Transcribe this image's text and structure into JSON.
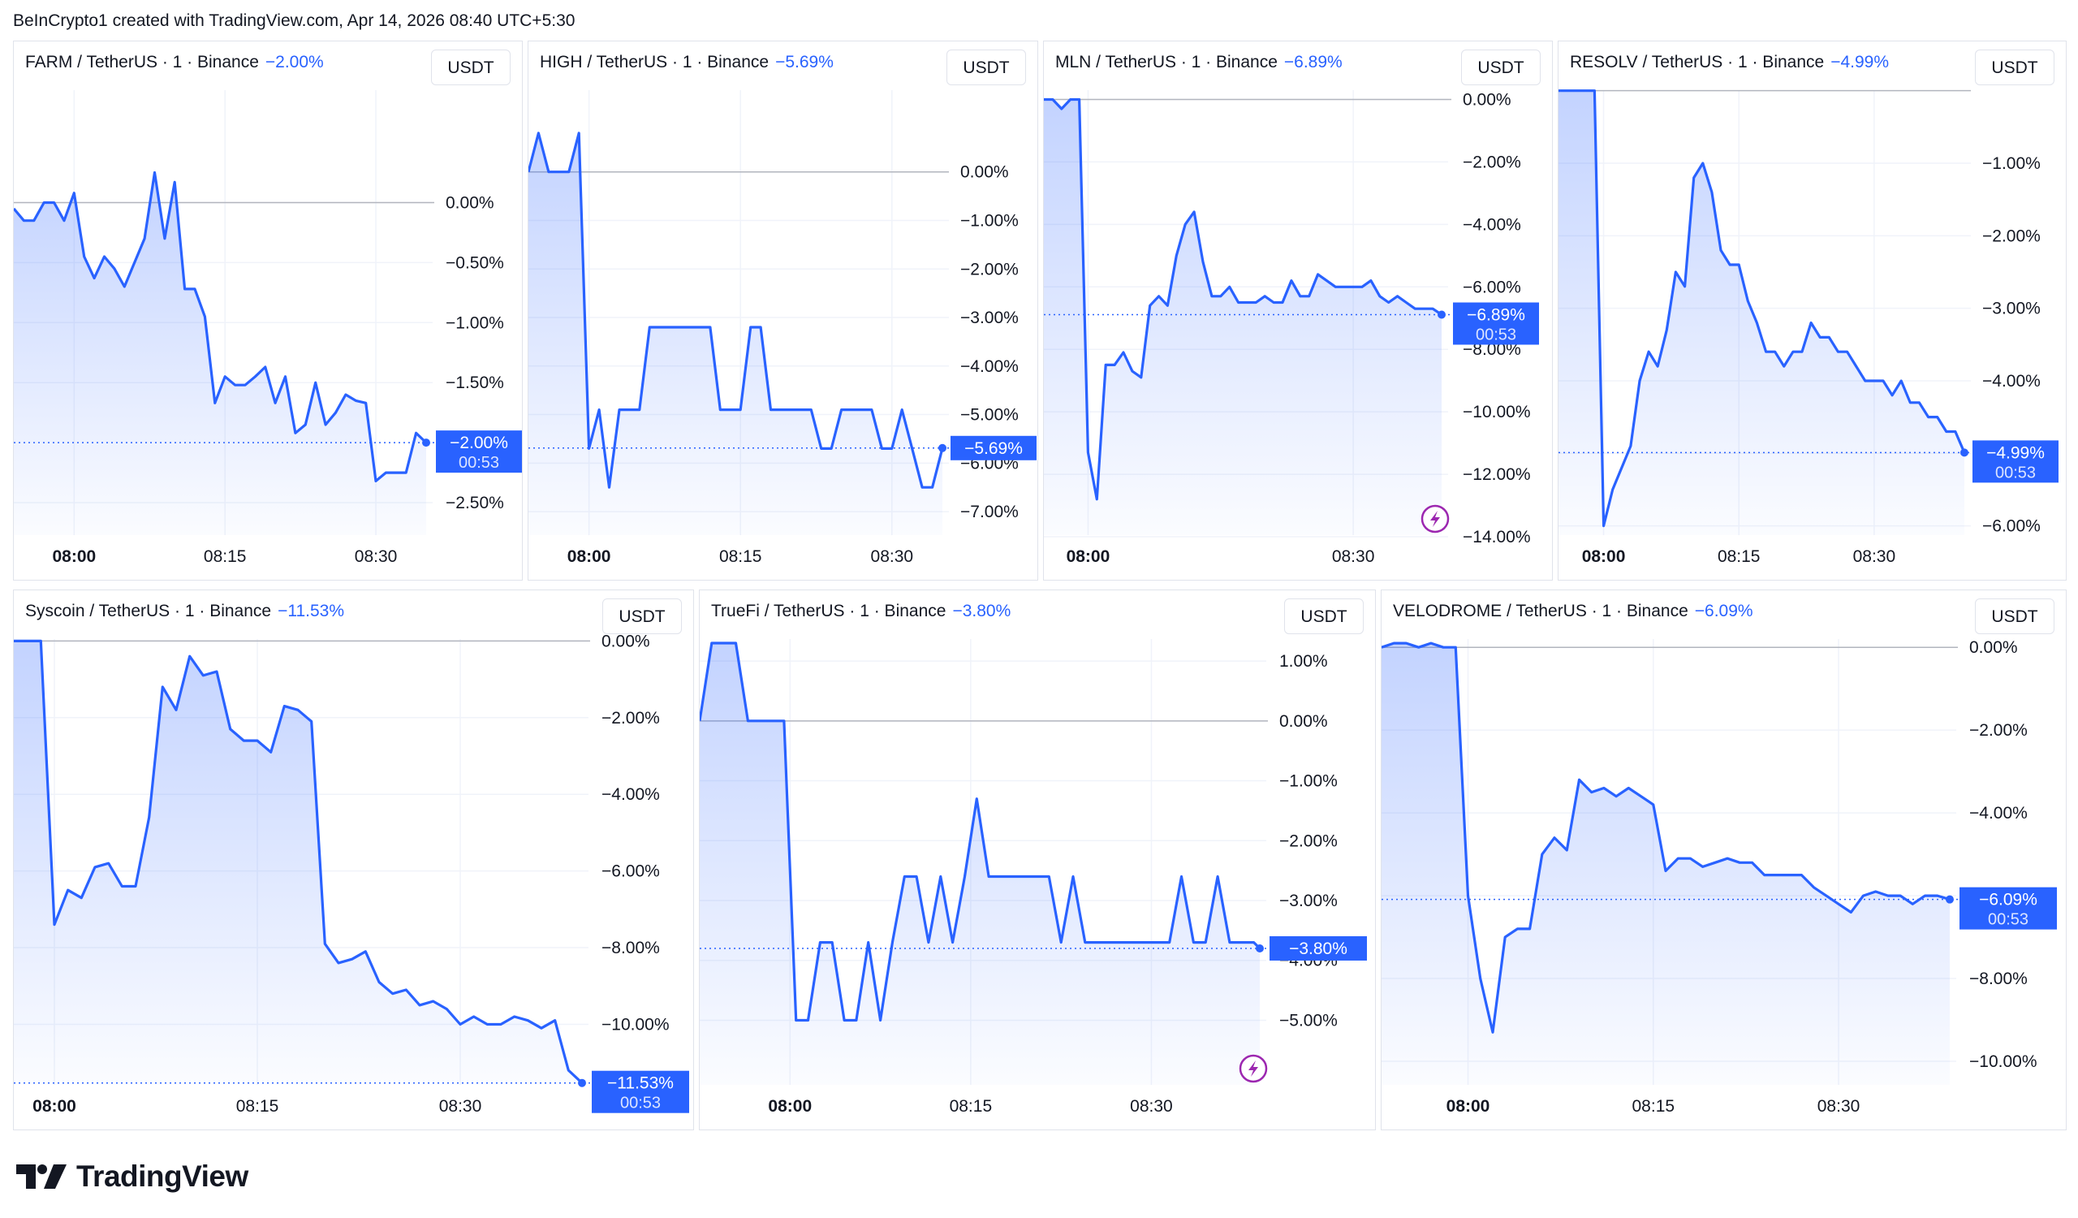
{
  "header": "BeInCrypto1 created with TradingView.com, Apr 14, 2026 08:40 UTC+5:30",
  "footer": {
    "brand": "TradingView",
    "logo_icon": "tradingview-logo-icon"
  },
  "colors": {
    "line": "#2962ff",
    "baseline": "#b2b5be",
    "grid": "#f0f3fa",
    "label_bg": "#2962ff",
    "lightning": "#9c27b0"
  },
  "chart_data": [
    {
      "type": "area",
      "title": "FARM / TetherUS · 1 · Binance",
      "change": "−2.00%",
      "currency": "USDT",
      "x_ticks": [
        "08:00",
        "08:15",
        "08:30"
      ],
      "x_tick_positions": [
        0,
        15,
        30
      ],
      "x_range": [
        -6,
        35
      ],
      "y_ticks": [
        0,
        -0.5,
        -1,
        -1.5,
        -2.5
      ],
      "y_tick_labels": [
        "0.00%",
        "−0.50%",
        "−1.00%",
        "−1.50%",
        "−2.50%"
      ],
      "ylim": [
        -2.75,
        0.7
      ],
      "last_value": -2.0,
      "last_label": "−2.00%",
      "countdown": "00:53",
      "x": [
        -6,
        -5,
        -4,
        -3,
        -2,
        -1,
        0,
        1,
        2,
        3,
        4,
        5,
        6,
        7,
        8,
        9,
        10,
        11,
        12,
        13,
        14,
        15,
        16,
        17,
        18,
        19,
        20,
        21,
        22,
        23,
        24,
        25,
        26,
        27,
        28,
        29,
        30,
        31,
        32,
        33,
        34,
        35
      ],
      "y": [
        -0.05,
        -0.15,
        -0.15,
        0.0,
        0.0,
        -0.15,
        0.08,
        -0.45,
        -0.63,
        -0.45,
        -0.55,
        -0.7,
        -0.5,
        -0.3,
        0.25,
        -0.3,
        0.17,
        -0.72,
        -0.72,
        -0.95,
        -1.67,
        -1.45,
        -1.52,
        -1.52,
        -1.45,
        -1.37,
        -1.67,
        -1.45,
        -1.92,
        -1.85,
        -1.5,
        -1.85,
        -1.75,
        -1.6,
        -1.65,
        -1.67,
        -2.32,
        -2.25,
        -2.25,
        -2.25,
        -1.92,
        -2.0
      ],
      "lightning": false
    },
    {
      "type": "area",
      "title": "HIGH / TetherUS · 1 · Binance",
      "change": "−5.69%",
      "currency": "USDT",
      "x_ticks": [
        "08:00",
        "08:15",
        "08:30"
      ],
      "x_tick_positions": [
        0,
        15,
        30
      ],
      "x_range": [
        -6,
        35
      ],
      "y_ticks": [
        0,
        -1,
        -2,
        -3,
        -4,
        -5,
        -6,
        -7
      ],
      "y_tick_labels": [
        "0.00%",
        "−1.00%",
        "−2.00%",
        "−3.00%",
        "−4.00%",
        "−5.00%",
        "−6.00%",
        "−7.00%"
      ],
      "ylim": [
        -7.35,
        1.1
      ],
      "last_value": -5.69,
      "last_label": "−5.69%",
      "countdown": "",
      "x": [
        -6,
        -5,
        -4,
        -3,
        -2,
        -1,
        0,
        1,
        2,
        3,
        4,
        5,
        6,
        7,
        8,
        9,
        10,
        11,
        12,
        13,
        14,
        15,
        16,
        17,
        18,
        19,
        20,
        21,
        22,
        23,
        24,
        25,
        26,
        27,
        28,
        29,
        30,
        31,
        32,
        33,
        34,
        35
      ],
      "y": [
        0.0,
        0.8,
        0.0,
        0.0,
        0.0,
        0.8,
        -5.7,
        -4.9,
        -6.5,
        -4.9,
        -4.9,
        -4.9,
        -3.2,
        -3.2,
        -3.2,
        -3.2,
        -3.2,
        -3.2,
        -3.2,
        -4.9,
        -4.9,
        -4.9,
        -3.2,
        -3.2,
        -4.9,
        -4.9,
        -4.9,
        -4.9,
        -4.9,
        -5.7,
        -5.7,
        -4.9,
        -4.9,
        -4.9,
        -4.9,
        -5.7,
        -5.7,
        -4.9,
        -5.7,
        -6.5,
        -6.5,
        -5.69
      ],
      "lightning": false
    },
    {
      "type": "area",
      "title": "MLN / TetherUS · 1 · Binance",
      "change": "−6.89%",
      "currency": "USDT",
      "x_ticks": [
        "08:00",
        "08:30"
      ],
      "x_tick_positions": [
        0,
        30
      ],
      "x_range": [
        -5,
        40
      ],
      "y_ticks": [
        0,
        -2,
        -4,
        -6,
        -8,
        -10,
        -12,
        -14
      ],
      "y_tick_labels": [
        "0.00%",
        "−2.00%",
        "−4.00%",
        "−6.00%",
        "−8.00%",
        "−10.00%",
        "−12.00%",
        "−14.00%"
      ],
      "ylim": [
        -14.0,
        0.35
      ],
      "last_value": -6.89,
      "last_label": "−6.89%",
      "countdown": "00:53",
      "x": [
        -5,
        -4,
        -3,
        -2,
        -1,
        0,
        1,
        2,
        3,
        4,
        5,
        6,
        7,
        8,
        9,
        10,
        11,
        12,
        13,
        14,
        15,
        16,
        17,
        18,
        19,
        20,
        21,
        22,
        23,
        24,
        25,
        26,
        27,
        28,
        29,
        30,
        31,
        32,
        33,
        34,
        35,
        36,
        37,
        38,
        39,
        40
      ],
      "y": [
        0.0,
        0.0,
        -0.3,
        0.0,
        0.0,
        -11.3,
        -12.8,
        -8.5,
        -8.5,
        -8.1,
        -8.7,
        -8.9,
        -6.6,
        -6.3,
        -6.6,
        -5.0,
        -4.0,
        -3.6,
        -5.2,
        -6.3,
        -6.3,
        -6.0,
        -6.5,
        -6.5,
        -6.5,
        -6.3,
        -6.5,
        -6.5,
        -5.8,
        -6.3,
        -6.3,
        -5.6,
        -5.8,
        -6.0,
        -6.0,
        -6.0,
        -6.0,
        -5.8,
        -6.3,
        -6.5,
        -6.3,
        -6.5,
        -6.7,
        -6.7,
        -6.7,
        -6.89
      ],
      "lightning": true
    },
    {
      "type": "area",
      "title": "RESOLV / TetherUS · 1 · Binance",
      "change": "−4.99%",
      "currency": "USDT",
      "x_ticks": [
        "08:00",
        "08:15",
        "08:30"
      ],
      "x_tick_positions": [
        0,
        15,
        30
      ],
      "x_range": [
        -5,
        40
      ],
      "y_ticks": [
        -1,
        -2,
        -3,
        -4,
        -5,
        -6
      ],
      "y_tick_labels": [
        "−1.00%",
        "−2.00%",
        "−3.00%",
        "−4.00%",
        "−5.00%",
        "−6.00%"
      ],
      "ylim": [
        -6.15,
        0.03
      ],
      "last_value": -4.99,
      "last_label": "−4.99%",
      "countdown": "00:53",
      "x": [
        -5,
        -4,
        -3,
        -2,
        -1,
        0,
        1,
        2,
        3,
        4,
        5,
        6,
        7,
        8,
        9,
        10,
        11,
        12,
        13,
        14,
        15,
        16,
        17,
        18,
        19,
        20,
        21,
        22,
        23,
        24,
        25,
        26,
        27,
        28,
        29,
        30,
        31,
        32,
        33,
        34,
        35,
        36,
        37,
        38,
        39,
        40
      ],
      "y": [
        0.0,
        0.0,
        0.0,
        0.0,
        0.0,
        -6.0,
        -5.5,
        -5.2,
        -4.9,
        -4.0,
        -3.6,
        -3.8,
        -3.3,
        -2.5,
        -2.7,
        -1.2,
        -1.0,
        -1.4,
        -2.2,
        -2.4,
        -2.4,
        -2.9,
        -3.2,
        -3.6,
        -3.6,
        -3.8,
        -3.6,
        -3.6,
        -3.2,
        -3.4,
        -3.4,
        -3.6,
        -3.6,
        -3.8,
        -4.0,
        -4.0,
        -4.0,
        -4.2,
        -4.0,
        -4.3,
        -4.3,
        -4.5,
        -4.5,
        -4.7,
        -4.7,
        -4.99
      ],
      "lightning": false
    },
    {
      "type": "area",
      "title": "Syscoin / TetherUS · 1 · Binance",
      "change": "−11.53%",
      "currency": "USDT",
      "x_ticks": [
        "08:00",
        "08:15",
        "08:30"
      ],
      "x_tick_positions": [
        0,
        15,
        30
      ],
      "x_range": [
        -3,
        39
      ],
      "y_ticks": [
        0,
        -2,
        -4,
        -6,
        -8,
        -10
      ],
      "y_tick_labels": [
        "0.00%",
        "−2.00%",
        "−4.00%",
        "−6.00%",
        "−8.00%",
        "−10.00%"
      ],
      "ylim": [
        -11.6,
        0.05
      ],
      "last_value": -11.53,
      "last_label": "−11.53%",
      "countdown": "00:53",
      "x": [
        -3,
        -2,
        -1,
        0,
        1,
        2,
        3,
        4,
        5,
        6,
        7,
        8,
        9,
        10,
        11,
        12,
        13,
        14,
        15,
        16,
        17,
        18,
        19,
        20,
        21,
        22,
        23,
        24,
        25,
        26,
        27,
        28,
        29,
        30,
        31,
        32,
        33,
        34,
        35,
        36,
        37,
        38,
        39
      ],
      "y": [
        0.0,
        0.0,
        0.0,
        -7.4,
        -6.5,
        -6.7,
        -5.9,
        -5.8,
        -6.4,
        -6.4,
        -4.6,
        -1.2,
        -1.8,
        -0.4,
        -0.9,
        -0.8,
        -2.3,
        -2.6,
        -2.6,
        -2.9,
        -1.7,
        -1.8,
        -2.1,
        -7.9,
        -8.4,
        -8.3,
        -8.1,
        -8.9,
        -9.2,
        -9.1,
        -9.5,
        -9.4,
        -9.6,
        -10.0,
        -9.8,
        -10.0,
        -10.0,
        -9.8,
        -9.9,
        -10.1,
        -9.9,
        -11.2,
        -11.53
      ],
      "lightning": false
    },
    {
      "type": "area",
      "title": "TrueFi / TetherUS · 1 · Binance",
      "change": "−3.80%",
      "currency": "USDT",
      "x_ticks": [
        "08:00",
        "08:15",
        "08:30"
      ],
      "x_tick_positions": [
        0,
        15,
        30
      ],
      "x_range": [
        -7.5,
        39
      ],
      "y_ticks": [
        1,
        0,
        -1,
        -2,
        -3,
        -4,
        -5
      ],
      "y_tick_labels": [
        "1.00%",
        "0.00%",
        "−1.00%",
        "−2.00%",
        "−3.00%",
        "−4.00%",
        "−5.00%"
      ],
      "ylim": [
        -5.55,
        1.3
      ],
      "last_value": -3.8,
      "last_label": "−3.80%",
      "countdown": "",
      "x": [
        -7.5,
        -6.5,
        -4.5,
        -3.5,
        -2.5,
        -1.5,
        -0.5,
        0.5,
        1.5,
        2.5,
        3.5,
        4.5,
        5.5,
        6.5,
        7.5,
        8.5,
        9.5,
        10.5,
        11.5,
        12.5,
        13.5,
        14.5,
        15.5,
        16.5,
        17.5,
        18.5,
        19.5,
        20.5,
        21.5,
        22.5,
        23.5,
        24.5,
        25.5,
        26.5,
        27.5,
        28.5,
        29.5,
        30.5,
        31.5,
        32.5,
        33.5,
        34.5,
        35.5,
        36.5,
        37.5,
        38.5,
        39
      ],
      "y": [
        0.0,
        1.3,
        1.3,
        0.0,
        0.0,
        0.0,
        0.0,
        -5.0,
        -5.0,
        -3.7,
        -3.7,
        -5.0,
        -5.0,
        -3.7,
        -5.0,
        -3.7,
        -2.6,
        -2.6,
        -3.7,
        -2.6,
        -3.7,
        -2.6,
        -1.3,
        -2.6,
        -2.6,
        -2.6,
        -2.6,
        -2.6,
        -2.6,
        -3.7,
        -2.6,
        -3.7,
        -3.7,
        -3.7,
        -3.7,
        -3.7,
        -3.7,
        -3.7,
        -3.7,
        -2.6,
        -3.7,
        -3.7,
        -2.6,
        -3.7,
        -3.7,
        -3.7,
        -3.8
      ],
      "lightning": true
    },
    {
      "type": "area",
      "title": "VELODROME / TetherUS · 1 · Binance",
      "change": "−6.09%",
      "currency": "USDT",
      "x_ticks": [
        "08:00",
        "08:15",
        "08:30"
      ],
      "x_tick_positions": [
        0,
        15,
        30
      ],
      "x_range": [
        -7,
        39
      ],
      "y_ticks": [
        0,
        -2,
        -4,
        -6,
        -8,
        -10
      ],
      "y_tick_labels": [
        "0.00%",
        "−2.00%",
        "−4.00%",
        "−6.00%",
        "−8.00%",
        "−10.00%"
      ],
      "ylim": [
        -10.0,
        0.2
      ],
      "last_value": -6.09,
      "last_label": "−6.09%",
      "countdown": "00:53",
      "x": [
        -7,
        -6,
        -5,
        -4,
        -3,
        -2,
        -1,
        0,
        1,
        2,
        3,
        4,
        5,
        6,
        7,
        8,
        9,
        10,
        11,
        12,
        13,
        14,
        15,
        16,
        17,
        18,
        19,
        20,
        21,
        22,
        23,
        24,
        25,
        26,
        27,
        28,
        29,
        30,
        31,
        32,
        33,
        34,
        35,
        36,
        37,
        38,
        39
      ],
      "y": [
        0.0,
        0.1,
        0.1,
        0.0,
        0.1,
        0.0,
        0.0,
        -6.0,
        -8.0,
        -9.3,
        -7.0,
        -6.8,
        -6.8,
        -5.0,
        -4.6,
        -4.9,
        -3.2,
        -3.5,
        -3.4,
        -3.6,
        -3.4,
        -3.6,
        -3.8,
        -5.4,
        -5.1,
        -5.1,
        -5.3,
        -5.2,
        -5.1,
        -5.2,
        -5.2,
        -5.5,
        -5.5,
        -5.5,
        -5.5,
        -5.8,
        -6.0,
        -6.2,
        -6.4,
        -6.0,
        -5.9,
        -6.0,
        -6.0,
        -6.2,
        -6.0,
        -6.0,
        -6.09
      ],
      "lightning": false
    }
  ]
}
